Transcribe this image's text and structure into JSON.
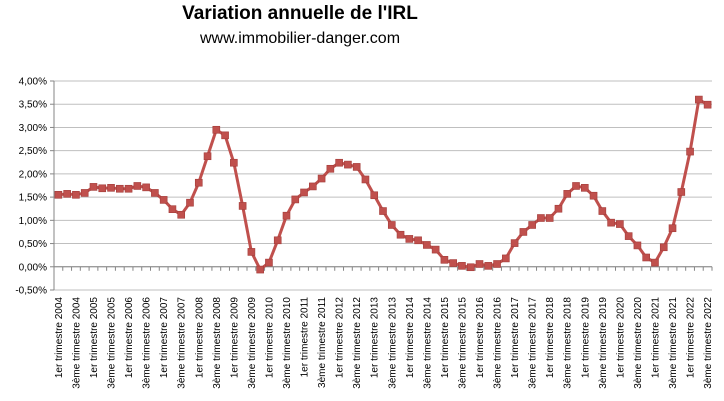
{
  "chart_data": {
    "type": "line",
    "title": "Variation annuelle de l'IRL",
    "subtitle": "www.immobilier-danger.com",
    "xlabel": "",
    "ylabel": "",
    "ylim": [
      -0.5,
      4.0
    ],
    "y_ticks": [
      -0.5,
      0,
      0.5,
      1.0,
      1.5,
      2.0,
      2.5,
      3.0,
      3.5,
      4.0
    ],
    "y_tick_labels": [
      "-0,50%",
      "0,00%",
      "0,50%",
      "1,00%",
      "1,50%",
      "2,00%",
      "2,50%",
      "3,00%",
      "3,50%",
      "4,00%"
    ],
    "grid": "horizontal",
    "series_color": "#c0504d",
    "x_tick_labels": [
      "1er trimestre 2004",
      "3ème trimestre 2004",
      "1er trimestre 2005",
      "3ème trimestre 2005",
      "1er trimestre 2006",
      "3ème trimestre 2006",
      "1er trimestre 2007",
      "3ème trimestre 2007",
      "1er trimestre 2008",
      "3ème trimestre 2008",
      "1er trimestre 2009",
      "3ème trimestre 2009",
      "1er trimestre 2010",
      "3ème trimestre 2010",
      "1er trimestre 2011",
      "3ème trimestre 2011",
      "1er trimestre 2012",
      "3ème trimestre 2012",
      "1er trimestre 2013",
      "3ème trimestre 2013",
      "1er trimestre 2014",
      "3ème trimestre 2014",
      "1er trimestre 2015",
      "3ème trimestre 2015",
      "1er trimestre 2016",
      "3ème trimestre 2016",
      "1er trimestre 2017",
      "3ème trimestre 2017",
      "1er trimestre 2018",
      "3ème trimestre 2018",
      "1er trimestre 2019",
      "3ème trimestre 2019",
      "1er trimestre 2020",
      "3ème trimestre 2020",
      "1er trimestre 2021",
      "3ème trimestre 2021",
      "1er trimestre 2022",
      "3ème trimestre 2022"
    ],
    "series": [
      {
        "name": "Variation annuelle de l'IRL (%)",
        "values": [
          1.55,
          1.57,
          1.55,
          1.59,
          1.72,
          1.69,
          1.7,
          1.68,
          1.68,
          1.74,
          1.71,
          1.59,
          1.44,
          1.24,
          1.12,
          1.38,
          1.81,
          2.38,
          2.95,
          2.83,
          2.24,
          1.31,
          0.32,
          -0.06,
          0.09,
          0.57,
          1.1,
          1.45,
          1.6,
          1.73,
          1.9,
          2.11,
          2.24,
          2.2,
          2.15,
          1.88,
          1.54,
          1.2,
          0.9,
          0.69,
          0.6,
          0.57,
          0.47,
          0.37,
          0.15,
          0.08,
          0.02,
          -0.01,
          0.06,
          0.02,
          0.06,
          0.18,
          0.51,
          0.75,
          0.9,
          1.05,
          1.05,
          1.25,
          1.57,
          1.74,
          1.7,
          1.53,
          1.2,
          0.95,
          0.92,
          0.66,
          0.46,
          0.2,
          0.09,
          0.42,
          0.83,
          1.61,
          2.48,
          3.6,
          3.49
        ]
      }
    ]
  }
}
